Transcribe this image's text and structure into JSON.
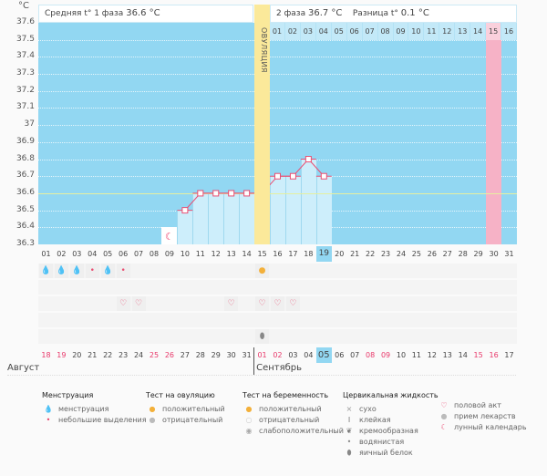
{
  "unit": "°C",
  "header": {
    "phase1": "Средняя t° 1 фаза",
    "phase1_value": "36.6 °C",
    "phase2": "2 фаза",
    "phase2_value": "36.7 °C",
    "diff": "Разница t°",
    "diff_value": "0.1 °C"
  },
  "ovulation_label": "ОВУЛЯЦИЯ",
  "y_ticks": [
    "37.6",
    "37.5",
    "37.4",
    "37.3",
    "37.2",
    "37.1",
    "37",
    "36.9",
    "36.8",
    "36.7",
    "36.6",
    "36.5",
    "36.4",
    "36.3"
  ],
  "cycle_days": [
    "01",
    "02",
    "03",
    "04",
    "05",
    "06",
    "07",
    "08",
    "09",
    "10",
    "11",
    "12",
    "13",
    "14",
    "15",
    "16",
    "17",
    "18",
    "19",
    "20",
    "21",
    "22",
    "23",
    "24",
    "25",
    "26",
    "27",
    "28",
    "29",
    "30",
    "31"
  ],
  "post_ovulation_days": [
    "01",
    "02",
    "03",
    "04",
    "05",
    "06",
    "07",
    "08",
    "09",
    "10",
    "11",
    "12",
    "13",
    "14",
    "15",
    "16"
  ],
  "chart_data": {
    "type": "line",
    "x": [
      10,
      11,
      12,
      13,
      14,
      15,
      16,
      17,
      18,
      19
    ],
    "values": [
      36.5,
      36.6,
      36.6,
      36.6,
      36.6,
      36.6,
      36.7,
      36.7,
      36.8,
      36.7
    ],
    "ylim": [
      36.3,
      37.6
    ],
    "coverline": 36.6,
    "ovulation_day": 15,
    "expected_period_day": 30,
    "current_day": 19,
    "moon_day": 9
  },
  "menstruation": [
    {
      "day": 1,
      "type": "heavy"
    },
    {
      "day": 2,
      "type": "heavy"
    },
    {
      "day": 3,
      "type": "heavy"
    },
    {
      "day": 4,
      "type": "light"
    },
    {
      "day": 5,
      "type": "heavy"
    },
    {
      "day": 6,
      "type": "light"
    }
  ],
  "ovulation_test_positive_days": [
    15
  ],
  "intercourse_days": [
    6,
    7,
    13,
    15,
    16,
    17
  ],
  "egg_white_days": [
    15
  ],
  "dates": [
    "18",
    "19",
    "20",
    "21",
    "22",
    "23",
    "24",
    "25",
    "26",
    "27",
    "28",
    "29",
    "30",
    "31",
    "01",
    "02",
    "03",
    "04",
    "05",
    "06",
    "07",
    "08",
    "09",
    "10",
    "11",
    "12",
    "13",
    "14",
    "15",
    "16",
    "17"
  ],
  "weekend_idx": [
    0,
    1,
    7,
    8,
    14,
    15,
    21,
    22,
    28,
    29
  ],
  "today_idx": 18,
  "months": {
    "first": "Август",
    "second": "Сентябрь"
  },
  "legend": {
    "menstruation": {
      "title": "Менструация",
      "items": [
        "менструация",
        "небольшие выделения"
      ]
    },
    "ovulation_test": {
      "title": "Тест на овуляцию",
      "items": [
        "положительный",
        "отрицательный"
      ]
    },
    "pregnancy_test": {
      "title": "Тест на беременность",
      "items": [
        "положительный",
        "отрицательный",
        "слабоположительный"
      ]
    },
    "cervical": {
      "title": "Цервикальная жидкость",
      "items": [
        "сухо",
        "клейкая",
        "кремообразная",
        "водянистая",
        "яичный белок"
      ]
    },
    "other": {
      "items": [
        "половой акт",
        "прием лекарств",
        "лунный календарь"
      ]
    }
  },
  "colors": {
    "plot": "#92d7f2",
    "bar": "#cdeefb",
    "ovulation": "#fbe99a",
    "period": "#f6b2c6",
    "line": "#ea4f73"
  }
}
